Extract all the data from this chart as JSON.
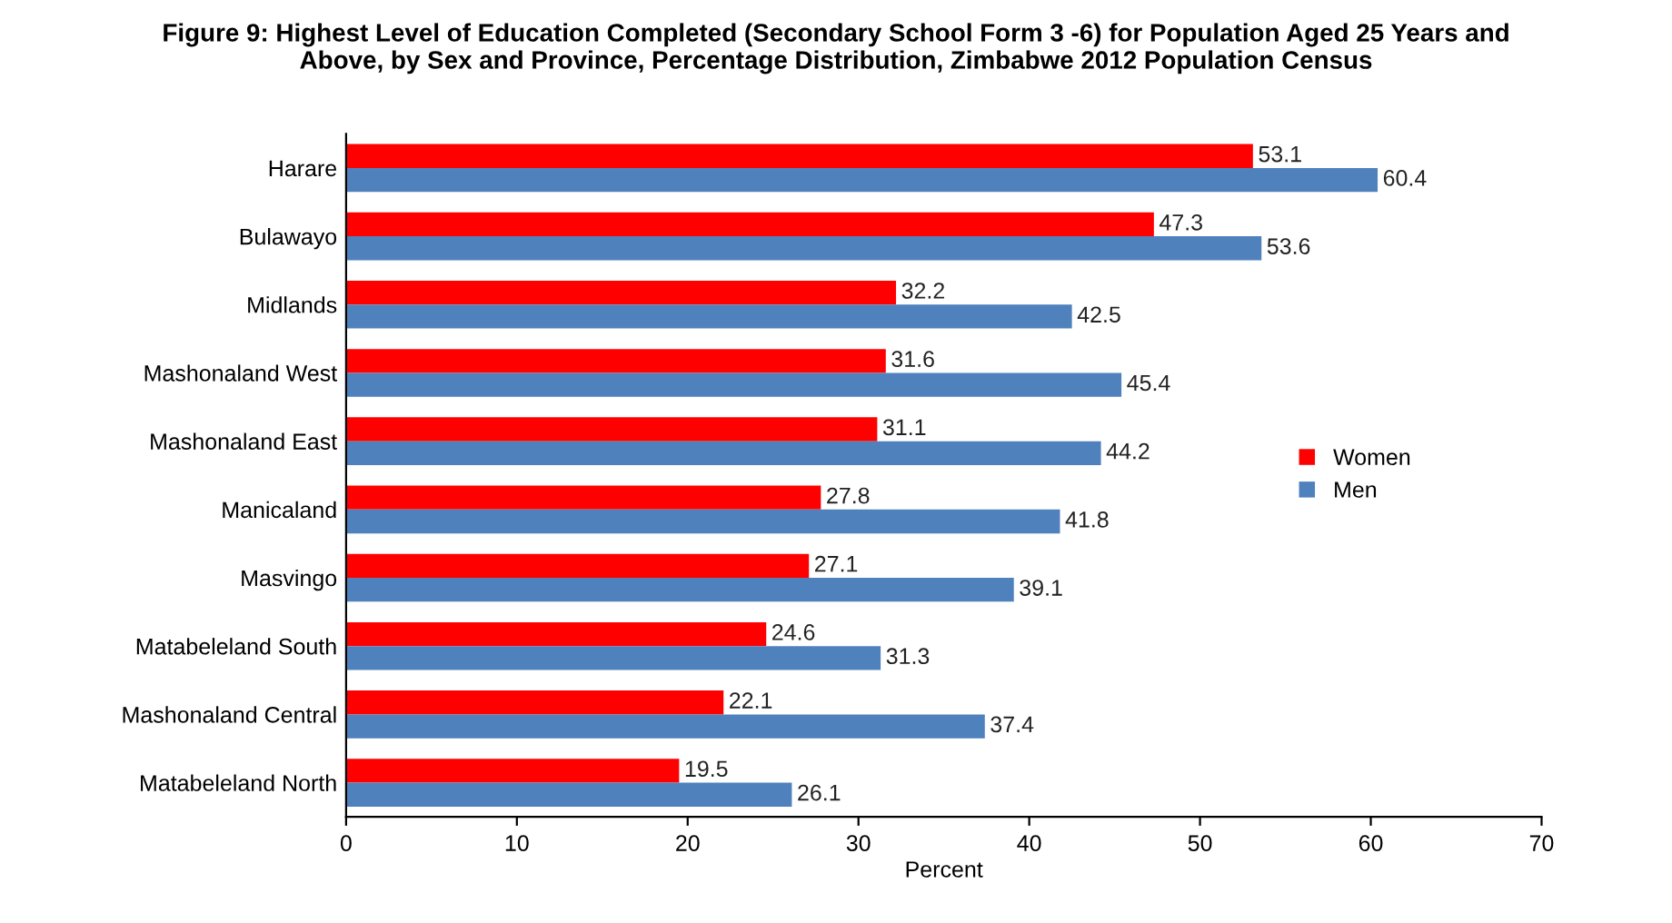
{
  "chart_data": {
    "type": "bar",
    "orientation": "horizontal",
    "title": "Figure 9: Highest Level of Education Completed (Secondary School Form 3 -6) for Population Aged 25 Years and\nAbove, by Sex and Province, Percentage Distribution, Zimbabwe 2012 Population Census",
    "xlabel": "Percent",
    "categories": [
      "Harare",
      "Bulawayo",
      "Midlands",
      "Mashonaland West",
      "Mashonaland East",
      "Manicaland",
      "Masvingo",
      "Matabeleland South",
      "Mashonaland Central",
      "Matabeleland North"
    ],
    "series": [
      {
        "name": "Women",
        "color": "#ff0000",
        "values": [
          53.1,
          47.3,
          32.2,
          31.6,
          31.1,
          27.8,
          27.1,
          24.6,
          22.1,
          19.5
        ]
      },
      {
        "name": "Men",
        "color": "#4f81bd",
        "values": [
          60.4,
          53.6,
          42.5,
          45.4,
          44.2,
          41.8,
          39.1,
          31.3,
          37.4,
          26.1
        ]
      }
    ],
    "xlim": [
      0,
      70
    ],
    "xticks": [
      0,
      10,
      20,
      30,
      40,
      50,
      60,
      70
    ],
    "data_labels": true,
    "grid": false,
    "legend": "right"
  }
}
